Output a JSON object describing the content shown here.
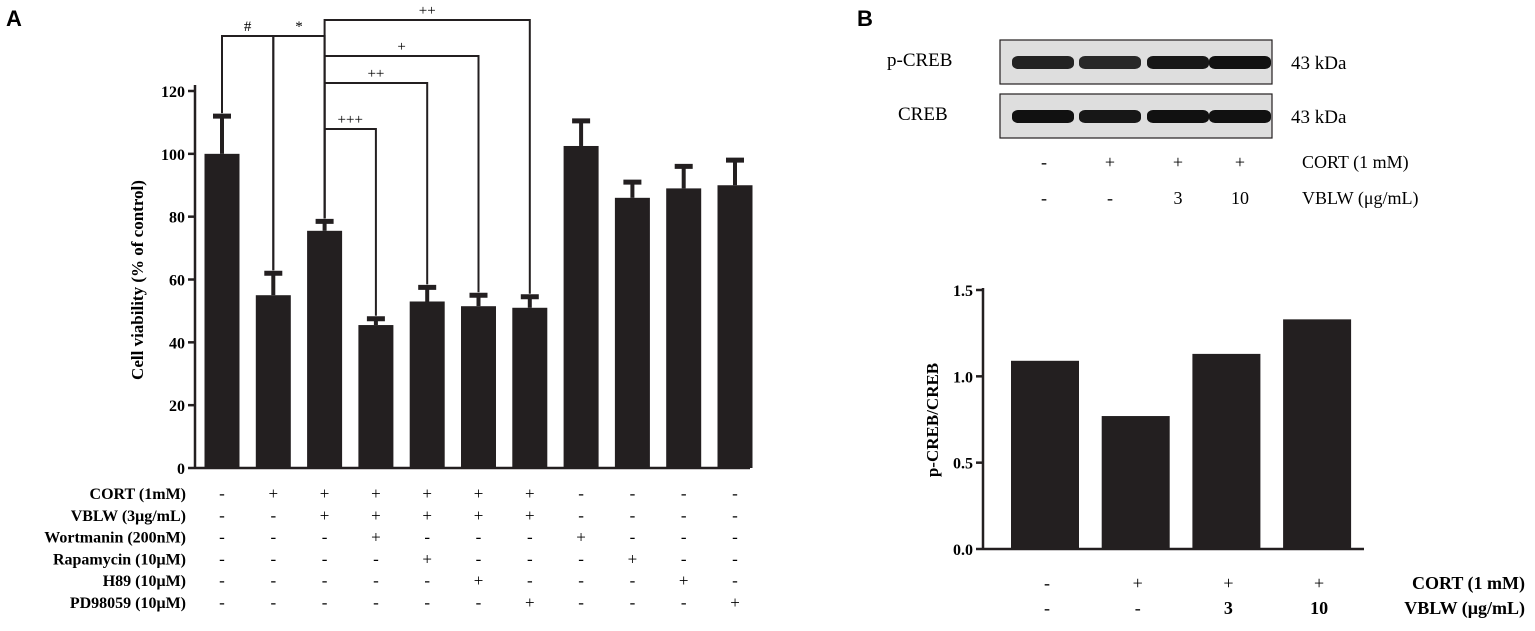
{
  "panelA": {
    "letter": "A",
    "chart_data": {
      "type": "bar",
      "ylabel": "Cell viability (% of control)",
      "ylim": [
        0,
        120
      ],
      "yticks": [
        0,
        20,
        40,
        60,
        80,
        100,
        120
      ],
      "values": [
        100,
        55,
        75.5,
        45.5,
        53,
        51.5,
        51,
        102.5,
        86,
        89,
        90
      ],
      "errors": [
        12,
        7,
        3,
        2,
        4.5,
        3.5,
        3.5,
        8,
        5,
        7,
        8
      ],
      "bar_color": "#231f20",
      "treatment_rows": [
        {
          "label": "CORT (1mM)",
          "signs": [
            "-",
            "+",
            "+",
            "+",
            "+",
            "+",
            "+",
            "-",
            "-",
            "-",
            "-"
          ]
        },
        {
          "label": "VBLW (3μg/mL)",
          "signs": [
            "-",
            "-",
            "+",
            "+",
            "+",
            "+",
            "+",
            "-",
            "-",
            "-",
            "-"
          ]
        },
        {
          "label": "Wortmanin (200nM)",
          "signs": [
            "-",
            "-",
            "-",
            "+",
            "-",
            "-",
            "-",
            "+",
            "-",
            "-",
            "-"
          ]
        },
        {
          "label": "Rapamycin (10μM)",
          "signs": [
            "-",
            "-",
            "-",
            "-",
            "+",
            "-",
            "-",
            "-",
            "+",
            "-",
            "-"
          ]
        },
        {
          "label": "H89 (10μM)",
          "signs": [
            "-",
            "-",
            "-",
            "-",
            "-",
            "+",
            "-",
            "-",
            "-",
            "+",
            "-"
          ]
        },
        {
          "label": "PD98059 (10μM)",
          "signs": [
            "-",
            "-",
            "-",
            "-",
            "-",
            "-",
            "+",
            "-",
            "-",
            "-",
            "+"
          ]
        }
      ],
      "significance": [
        {
          "from": 0,
          "to": 1,
          "label": "#"
        },
        {
          "from": 1,
          "to": 2,
          "label": "*"
        },
        {
          "from": 2,
          "to": 3,
          "label": "+++"
        },
        {
          "from": 2,
          "to": 4,
          "label": "++"
        },
        {
          "from": 2,
          "to": 5,
          "label": "+"
        },
        {
          "from": 2,
          "to": 6,
          "label": "++"
        }
      ]
    }
  },
  "panelB": {
    "letter": "B",
    "blot": {
      "rows": [
        {
          "label": "p-CREB",
          "size": "43 kDa",
          "intensity": [
            0.85,
            0.8,
            0.95,
            1.0
          ]
        },
        {
          "label": "CREB",
          "size": "43 kDa",
          "intensity": [
            1.0,
            0.95,
            1.0,
            1.0
          ]
        }
      ],
      "treatment_rows": [
        {
          "label": "CORT (1 mM)",
          "signs": [
            "-",
            "+",
            "+",
            "+"
          ]
        },
        {
          "label": "VBLW (μg/mL)",
          "signs": [
            "-",
            "-",
            "3",
            "10"
          ]
        }
      ]
    },
    "chart_data": {
      "type": "bar",
      "ylabel": "p-CREB/CREB",
      "ylim": [
        0,
        1.5
      ],
      "yticks": [
        "0.0",
        "0.5",
        "1.0",
        "1.5"
      ],
      "values": [
        1.09,
        0.77,
        1.13,
        1.33
      ],
      "bar_color": "#231f20",
      "treatment_rows": [
        {
          "label": "CORT (1 mM)",
          "signs": [
            "-",
            "+",
            "+",
            "+"
          ]
        },
        {
          "label": "VBLW (μg/mL)",
          "signs": [
            "-",
            "-",
            "3",
            "10"
          ]
        }
      ]
    }
  }
}
